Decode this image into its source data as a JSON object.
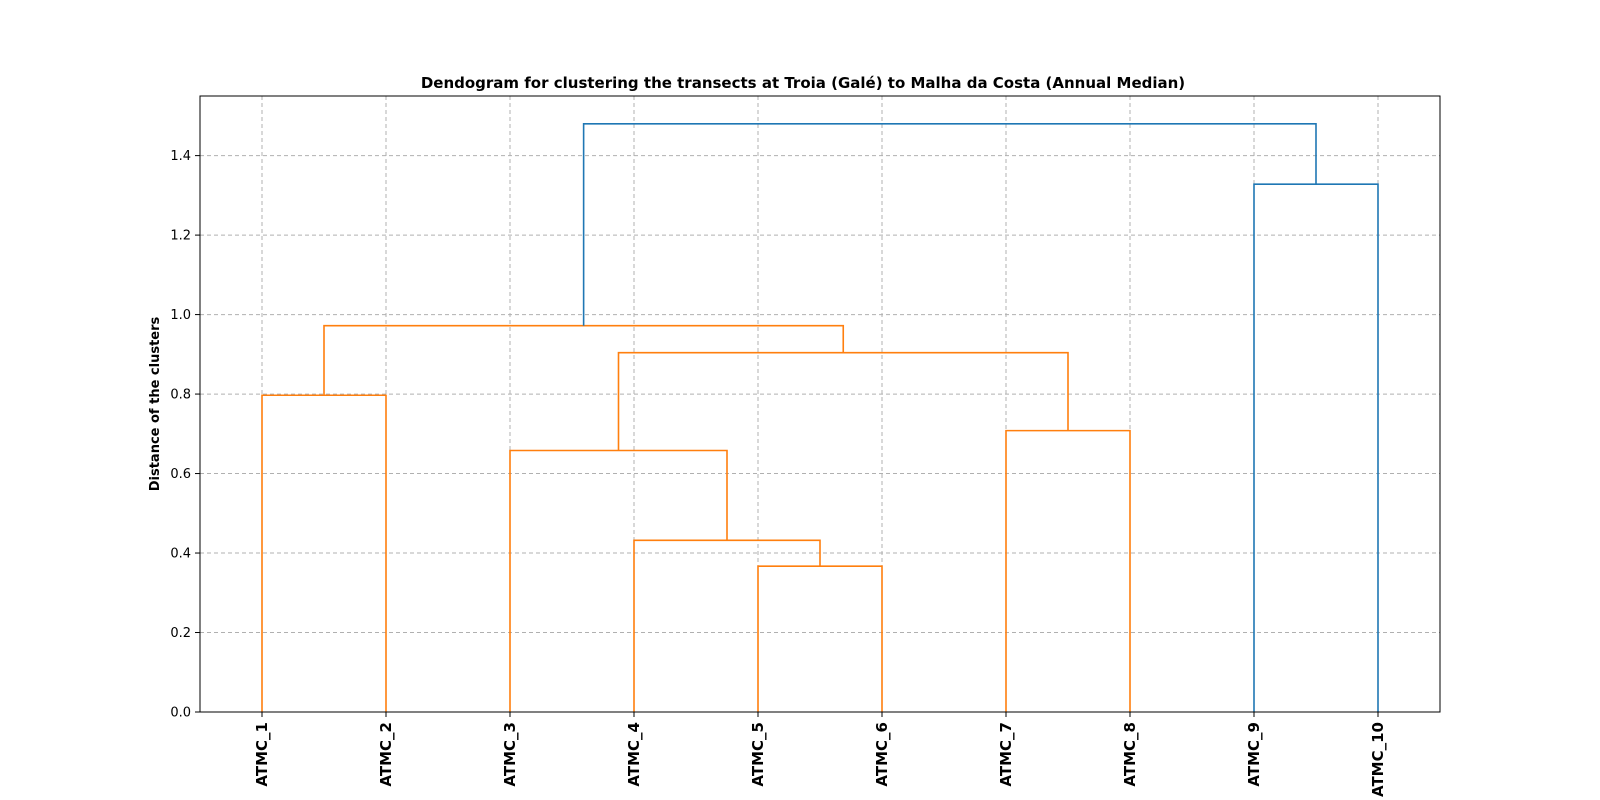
{
  "chart_data": {
    "type": "dendrogram",
    "title": "Dendogram for clustering the transects at Troia (Galé) to Malha da Costa (Annual Median)",
    "xlabel": "",
    "ylabel": "Distance of the clusters",
    "ylim": [
      0,
      1.55
    ],
    "yticks": [
      "0.0",
      "0.2",
      "0.4",
      "0.6",
      "0.8",
      "1.0",
      "1.2",
      "1.4"
    ],
    "ytick_values": [
      0,
      0.2,
      0.4,
      0.6,
      0.8,
      1.0,
      1.2,
      1.4
    ],
    "grid": true,
    "leaves": [
      "ATMC_1",
      "ATMC_2",
      "ATMC_3",
      "ATMC_4",
      "ATMC_5",
      "ATMC_6",
      "ATMC_7",
      "ATMC_8",
      "ATMC_9",
      "ATMC_10"
    ],
    "colors": {
      "cluster": "#ff7f0e",
      "above_threshold": "#1f77b4",
      "grid": "#b0b0b0"
    },
    "merges": [
      {
        "left": "ATMC_5",
        "right": "ATMC_6",
        "distance": 0.367,
        "color": "cluster"
      },
      {
        "left": "ATMC_4",
        "right": "ATMC_5 + ATMC_6",
        "distance": 0.432,
        "color": "cluster"
      },
      {
        "left": "ATMC_3",
        "right": "ATMC_4 + ATMC_5 + ATMC_6",
        "distance": 0.658,
        "color": "cluster"
      },
      {
        "left": "ATMC_7",
        "right": "ATMC_8",
        "distance": 0.708,
        "color": "cluster"
      },
      {
        "left": "ATMC_1",
        "right": "ATMC_2",
        "distance": 0.797,
        "color": "cluster"
      },
      {
        "left": "ATMC_3..ATMC_6",
        "right": "ATMC_7 + ATMC_8",
        "distance": 0.904,
        "color": "cluster"
      },
      {
        "left": "ATMC_1 + ATMC_2",
        "right": "ATMC_3..ATMC_8",
        "distance": 0.972,
        "color": "cluster"
      },
      {
        "left": "ATMC_9",
        "right": "ATMC_10",
        "distance": 1.328,
        "color": "above_threshold"
      },
      {
        "left": "ATMC_1..ATMC_8",
        "right": "ATMC_9 + ATMC_10",
        "distance": 1.48,
        "color": "above_threshold"
      }
    ],
    "tree": {
      "h": 1.48,
      "color": "above_threshold",
      "children": [
        {
          "h": 0.972,
          "color": "cluster",
          "children": [
            {
              "h": 0.797,
              "color": "cluster",
              "children": [
                {
                  "leaf": 0
                },
                {
                  "leaf": 1
                }
              ]
            },
            {
              "h": 0.904,
              "color": "cluster",
              "children": [
                {
                  "h": 0.658,
                  "color": "cluster",
                  "children": [
                    {
                      "leaf": 2
                    },
                    {
                      "h": 0.432,
                      "color": "cluster",
                      "children": [
                        {
                          "leaf": 3
                        },
                        {
                          "h": 0.367,
                          "color": "cluster",
                          "children": [
                            {
                              "leaf": 4
                            },
                            {
                              "leaf": 5
                            }
                          ]
                        }
                      ]
                    }
                  ]
                },
                {
                  "h": 0.708,
                  "color": "cluster",
                  "children": [
                    {
                      "leaf": 6
                    },
                    {
                      "leaf": 7
                    }
                  ]
                }
              ]
            }
          ]
        },
        {
          "h": 1.328,
          "color": "above_threshold",
          "children": [
            {
              "leaf": 8
            },
            {
              "leaf": 9
            }
          ]
        }
      ]
    }
  }
}
